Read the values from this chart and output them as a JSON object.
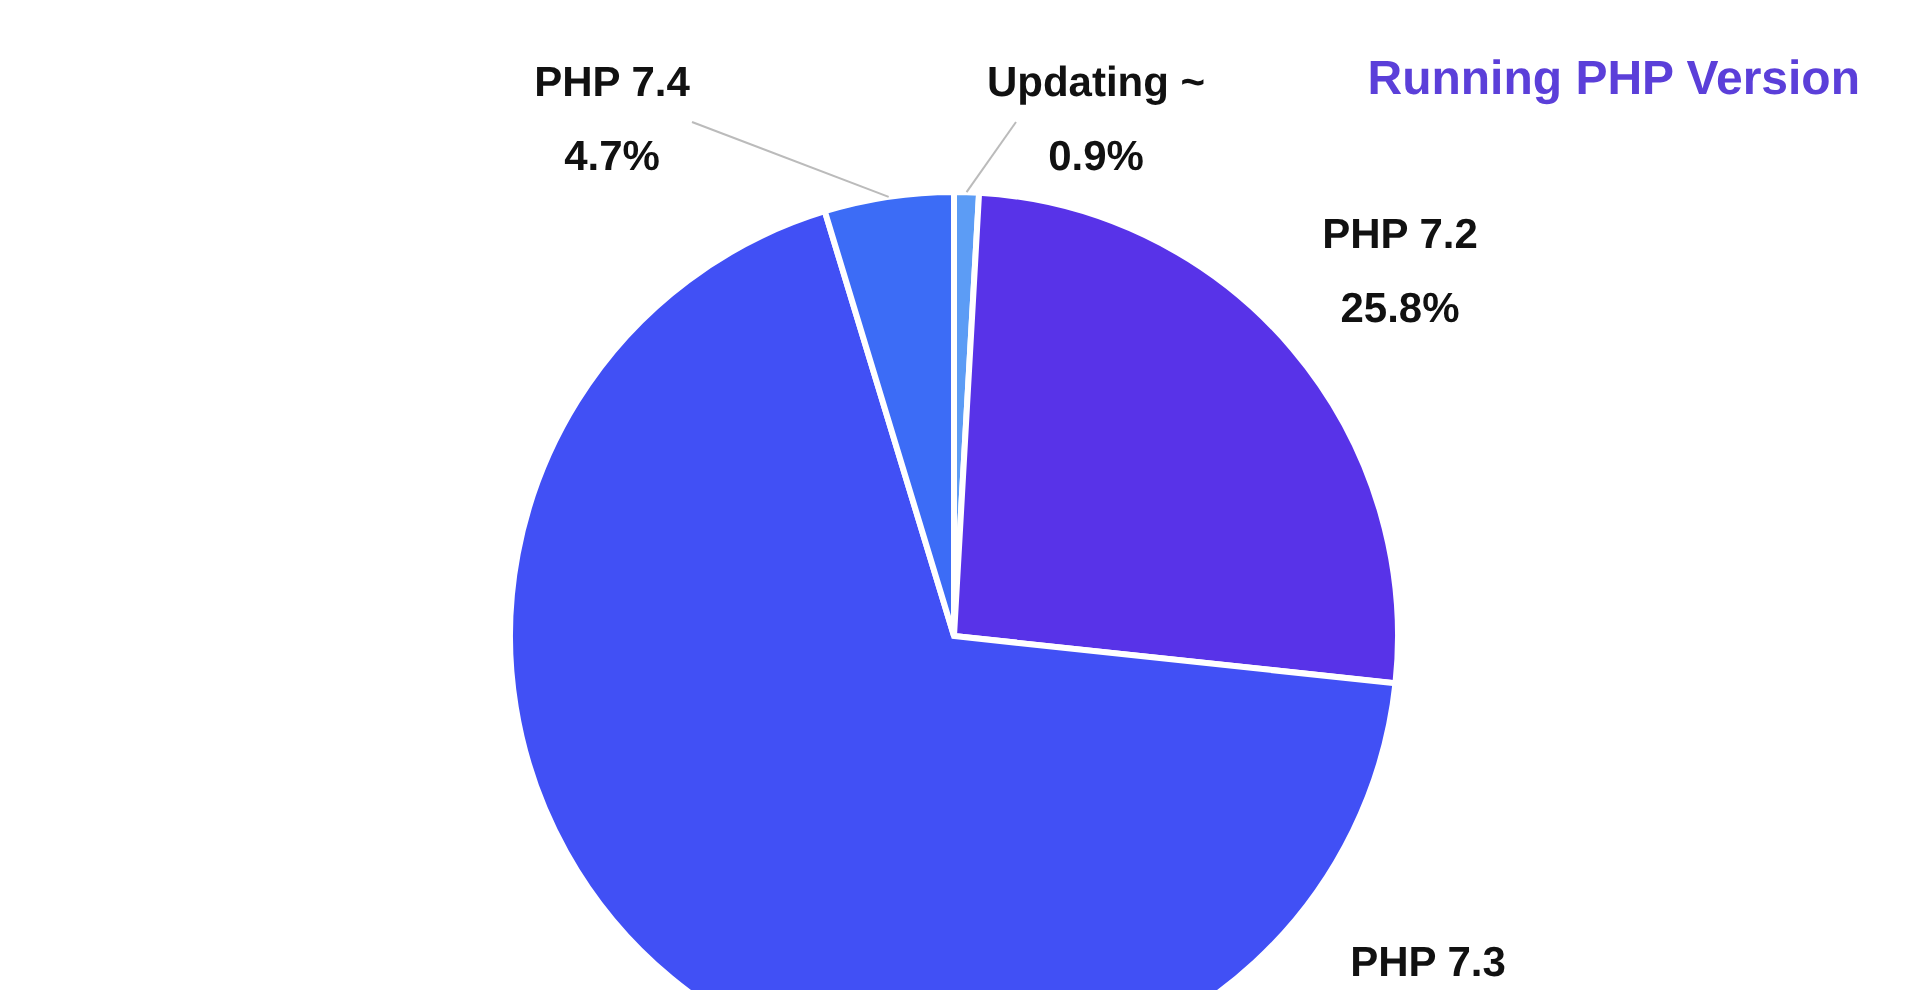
{
  "chart_data": {
    "type": "pie",
    "title": "Running PHP Version",
    "categories": [
      "Updating ~",
      "PHP 7.2",
      "PHP 7.3",
      "PHP 7.4"
    ],
    "values": [
      0.9,
      25.8,
      68.6,
      4.7
    ],
    "value_labels": [
      "0.9%",
      "25.8%",
      null,
      "4.7%"
    ],
    "colors": [
      "#5c9cf5",
      "#5833e8",
      "#4150f5",
      "#3c6cf6"
    ]
  }
}
